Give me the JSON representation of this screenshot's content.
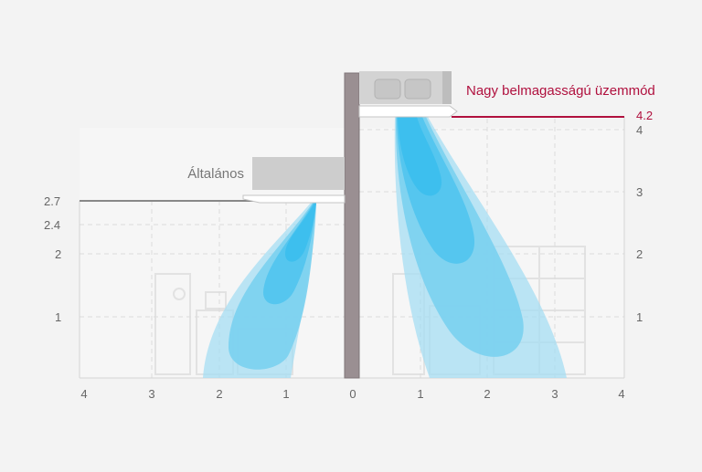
{
  "labels": {
    "general_mode": "Általános",
    "high_ceiling_mode": "Nagy belmagasságú üzemmód"
  },
  "left_axis": {
    "ticks": [
      "2.7",
      "2.4",
      "2",
      "1"
    ]
  },
  "right_axis": {
    "ticks": [
      "4.2",
      "4",
      "3",
      "2",
      "1"
    ]
  },
  "bottom_axis": {
    "ticks": [
      "4",
      "3",
      "2",
      "1",
      "0",
      "1",
      "2",
      "3",
      "4"
    ]
  },
  "colors": {
    "accent": "#b0103e",
    "airflow_light": "#a9e0f3",
    "airflow_mid": "#7fd1f0",
    "airflow_dark": "#3fc2ef",
    "wall": "#9a8f92",
    "unit_body": "#c9c9c9",
    "grid": "#dcdcdc",
    "text": "#666666"
  },
  "icons": {
    "indoor_unit_general": "ceiling-cassette-unit-icon",
    "indoor_unit_high": "ceiling-cassette-unit-icon"
  }
}
